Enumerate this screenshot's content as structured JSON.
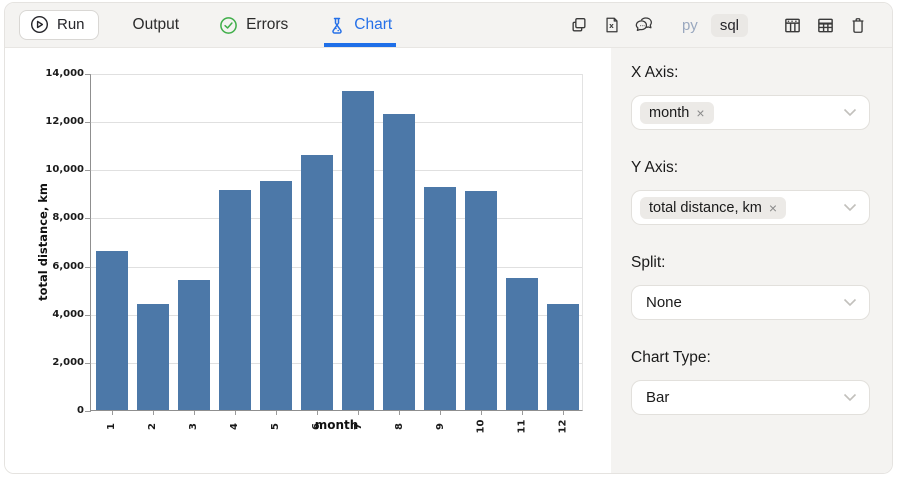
{
  "toolbar": {
    "run_label": "Run",
    "tab_output": "Output",
    "tab_errors": "Errors",
    "tab_chart": "Chart",
    "lang_py": "py",
    "lang_sql": "sql",
    "icons": [
      "copy-icon",
      "export-file-icon",
      "comments-icon",
      "table-icon",
      "grid-table-icon",
      "trash-icon"
    ]
  },
  "panel": {
    "x_axis_label": "X Axis:",
    "x_axis_value": "month",
    "y_axis_label": "Y Axis:",
    "y_axis_value": "total distance, km",
    "split_label": "Split:",
    "split_value": "None",
    "chart_type_label": "Chart Type:",
    "chart_type_value": "Bar",
    "remove_glyph": "×"
  },
  "colors": {
    "accent_blue": "#2570e8",
    "success_green": "#3fae49",
    "bar_blue": "#4c78a8",
    "panel_bg": "#f4f3f1"
  },
  "chart_data": {
    "type": "bar",
    "categories": [
      "1",
      "2",
      "3",
      "4",
      "5",
      "6",
      "7",
      "8",
      "9",
      "10",
      "11",
      "12"
    ],
    "values": [
      6600,
      4400,
      5400,
      9150,
      9500,
      10600,
      13250,
      12300,
      9250,
      9100,
      5500,
      4400
    ],
    "title": "",
    "xlabel": "month",
    "ylabel": "total distance, km",
    "ylim": [
      0,
      14000
    ],
    "ytick_step": 2000,
    "grid": true,
    "legend": "none",
    "bar_color": "#4c78a8"
  }
}
